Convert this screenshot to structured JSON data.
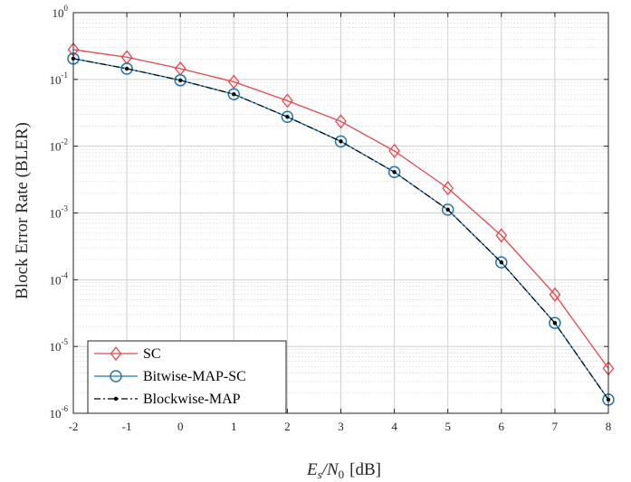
{
  "chart_data": {
    "type": "line",
    "xlabel": "E_s/N_0 [dB]",
    "xlabel_main": "E",
    "xlabel_sub1": "s",
    "xlabel_slash": "/N",
    "xlabel_sub2": "0",
    "xlabel_unit": "[dB]",
    "ylabel": "Block Error Rate (BLER)",
    "xlim": [
      -2,
      8
    ],
    "ylim": [
      1e-06,
      1
    ],
    "yscale": "log",
    "grid": true,
    "minor_grid": true,
    "legend_position": "bottom-left",
    "x_ticks": [
      "-2",
      "-1",
      "0",
      "1",
      "2",
      "3",
      "4",
      "5",
      "6",
      "7",
      "8"
    ],
    "y_ticks": [
      {
        "base": "10",
        "exp": "0"
      },
      {
        "base": "10",
        "exp": "-1"
      },
      {
        "base": "10",
        "exp": "-2"
      },
      {
        "base": "10",
        "exp": "-3"
      },
      {
        "base": "10",
        "exp": "-4"
      },
      {
        "base": "10",
        "exp": "-5"
      },
      {
        "base": "10",
        "exp": "-6"
      }
    ],
    "x": [
      -2,
      -1,
      0,
      1,
      2,
      3,
      4,
      5,
      6,
      7,
      8
    ],
    "series": [
      {
        "name": "SC",
        "color": "#e8464b",
        "marker": "diamond",
        "line": "solid",
        "values": [
          0.28,
          0.215,
          0.145,
          0.092,
          0.048,
          0.0235,
          0.0085,
          0.00235,
          0.00046,
          6e-05,
          4.7e-06
        ]
      },
      {
        "name": "Bitwise-MAP-SC",
        "color": "#1f77b4",
        "marker": "circle",
        "line": "solid",
        "values": [
          0.205,
          0.145,
          0.097,
          0.06,
          0.0275,
          0.0118,
          0.0041,
          0.00112,
          0.000182,
          2.25e-05,
          1.6e-06
        ]
      },
      {
        "name": "Blockwise-MAP",
        "color": "#000000",
        "marker": "dot",
        "line": "dashdot",
        "values": [
          0.205,
          0.145,
          0.097,
          0.06,
          0.0275,
          0.0118,
          0.0041,
          0.00112,
          0.000182,
          2.25e-05,
          1.6e-06
        ]
      }
    ]
  }
}
